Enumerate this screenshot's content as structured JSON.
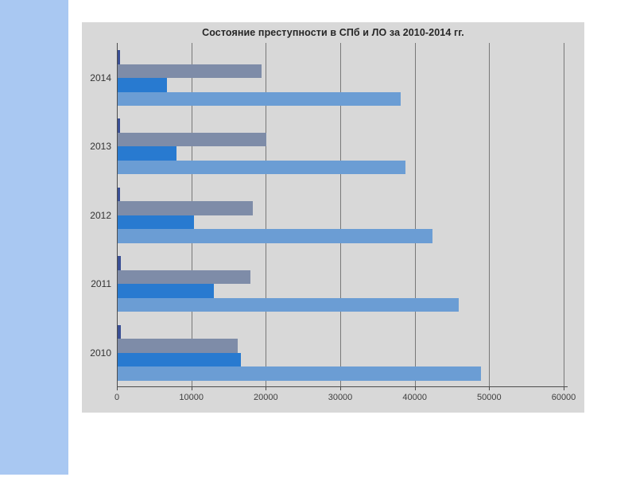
{
  "slide": {
    "background_color": "#FFFFFF",
    "accent_band_color": "#A9C8F2"
  },
  "chart_data": {
    "type": "bar",
    "orientation": "horizontal",
    "title": "Состояние преступности в СПб и ЛО за 2010-2014 гг.",
    "categories": [
      "2014",
      "2013",
      "2012",
      "2011",
      "2010"
    ],
    "series": [
      {
        "name": "series-1-dark-navy",
        "color": "#3A4F94",
        "values": [
          300,
          300,
          350,
          400,
          450
        ]
      },
      {
        "name": "series-2-gray-blue",
        "color": "#7E8CA8",
        "values": [
          19300,
          20000,
          18200,
          17800,
          16100
        ]
      },
      {
        "name": "series-3-bright-blue",
        "color": "#287AD0",
        "values": [
          6600,
          7900,
          10300,
          12900,
          16600
        ]
      },
      {
        "name": "series-4-light-blue",
        "color": "#6B9DD4",
        "values": [
          38000,
          38600,
          42300,
          45800,
          48800
        ]
      }
    ],
    "xlabel": "",
    "ylabel": "",
    "xlim": [
      0,
      60000
    ],
    "x_ticks": [
      0,
      10000,
      20000,
      30000,
      40000,
      50000,
      60000
    ],
    "grid": true,
    "legend": false,
    "plot_background": "#D8D8D8",
    "gridline_color": "#787878",
    "axis_color": "#4D4D4D",
    "tick_label_color": "#404040",
    "category_label_color": "#333333",
    "title_color": "#262626"
  }
}
